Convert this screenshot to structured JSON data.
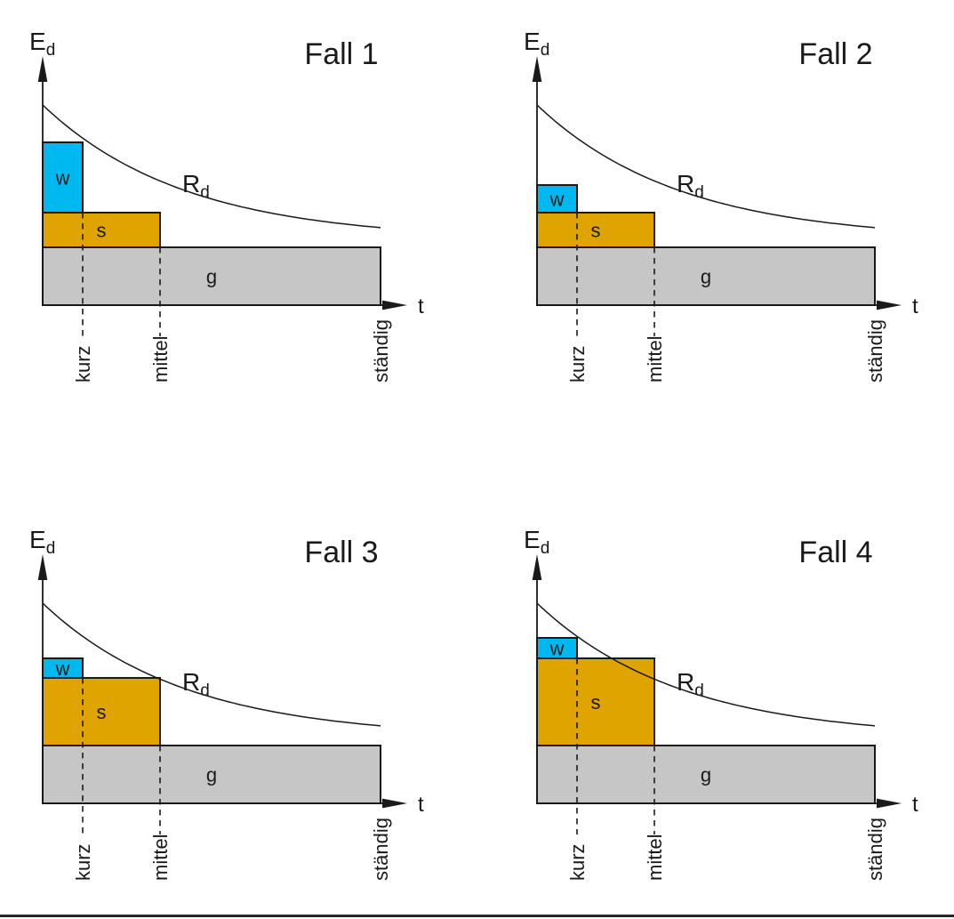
{
  "figure": {
    "language": "de",
    "panel_count": 4
  },
  "labels": {
    "y_main": "E",
    "y_sub": "d",
    "curve_main": "R",
    "curve_sub": "d",
    "x": "t",
    "wind": "w",
    "snow": "s",
    "permanent": "g",
    "tick_kurz": "kurz",
    "tick_mittel": "mittel",
    "tick_staendig": "ständig"
  },
  "colors": {
    "wind": "#00b8f0",
    "snow": "#e0a400",
    "permanent": "#c6c6c6",
    "line": "#1a1a1a",
    "background": "#ffffff"
  },
  "chart_data": {
    "type": "diagram",
    "subtype": "load-duration-vs-resistance",
    "y_axis_label": "Ed",
    "x_axis_label": "t",
    "curve_label": "Rd",
    "x_ticks": [
      "kurz",
      "mittel",
      "ständig"
    ],
    "bar_labels": [
      "w",
      "s",
      "g"
    ],
    "shared": {
      "geometry": {
        "axis_x": 48,
        "baseline_y": 343,
        "y_axis_top": 63,
        "kurz_x": 45,
        "mittel_x": 132,
        "staendig_x": 380,
        "g_top": 65,
        "dash_bottom_y": 378,
        "tick_text_bottom_y": 430,
        "curve": {
          "y_start": 225,
          "y_asymptote": 73,
          "tau": 160,
          "x_end": 380
        }
      }
    },
    "panels": [
      {
        "title": "Fall 1",
        "w_top": 183,
        "s_top": 104
      },
      {
        "title": "Fall 2",
        "w_top": 135,
        "s_top": 104
      },
      {
        "title": "Fall 3",
        "w_top": 163,
        "s_top": 141
      },
      {
        "title": "Fall 4",
        "w_top": 186,
        "s_top": 163
      }
    ]
  }
}
